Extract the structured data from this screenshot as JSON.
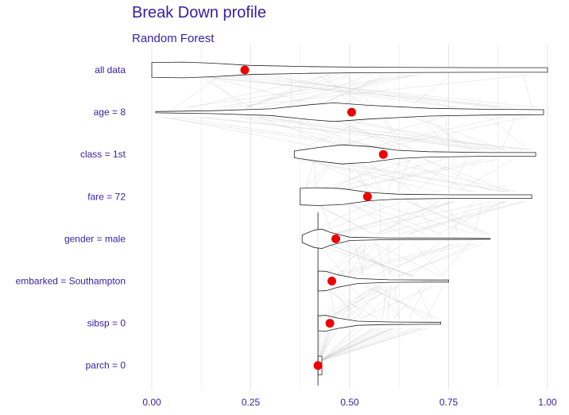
{
  "title": "Break Down profile",
  "subtitle": "Random Forest",
  "colors": {
    "text": "#371ea3",
    "point": "#ee0000",
    "grid": "#e6e6e6",
    "violin_stroke": "#222222",
    "trace": "#cccccc"
  },
  "chart_data": {
    "type": "violin",
    "title": "Break Down profile",
    "subtitle": "Random Forest",
    "xlim": [
      0,
      1
    ],
    "x_ticks": [
      "0.00",
      "0.25",
      "0.50",
      "0.75",
      "1.00"
    ],
    "x_tick_values": [
      0,
      0.25,
      0.5,
      0.75,
      1.0
    ],
    "grid": true,
    "categories": [
      "all data",
      "age = 8",
      "class = 1st",
      "fare = 72",
      "gender = male",
      "embarked = Southampton",
      "sibsp = 0",
      "parch = 0"
    ],
    "points": [
      0.235,
      0.505,
      0.585,
      0.545,
      0.465,
      0.455,
      0.45,
      0.42
    ],
    "violins": [
      {
        "min": 0.0,
        "max": 1.0,
        "profile": [
          [
            0.0,
            0.36
          ],
          [
            0.08,
            0.38
          ],
          [
            0.15,
            0.33
          ],
          [
            0.25,
            0.22
          ],
          [
            0.4,
            0.16
          ],
          [
            0.55,
            0.13
          ],
          [
            0.7,
            0.12
          ],
          [
            0.85,
            0.11
          ],
          [
            1.0,
            0.11
          ]
        ]
      },
      {
        "min": 0.01,
        "max": 0.99,
        "profile": [
          [
            0.01,
            0.03
          ],
          [
            0.15,
            0.07
          ],
          [
            0.3,
            0.16
          ],
          [
            0.4,
            0.36
          ],
          [
            0.46,
            0.45
          ],
          [
            0.55,
            0.33
          ],
          [
            0.7,
            0.19
          ],
          [
            0.85,
            0.14
          ],
          [
            0.99,
            0.12
          ]
        ]
      },
      {
        "min": 0.36,
        "max": 0.97,
        "profile": [
          [
            0.36,
            0.16
          ],
          [
            0.42,
            0.33
          ],
          [
            0.48,
            0.46
          ],
          [
            0.55,
            0.38
          ],
          [
            0.62,
            0.2
          ],
          [
            0.7,
            0.13
          ],
          [
            0.85,
            0.09
          ],
          [
            0.97,
            0.09
          ]
        ]
      },
      {
        "min": 0.375,
        "max": 0.96,
        "profile": [
          [
            0.375,
            0.4
          ],
          [
            0.42,
            0.43
          ],
          [
            0.48,
            0.39
          ],
          [
            0.55,
            0.2
          ],
          [
            0.62,
            0.12
          ],
          [
            0.75,
            0.09
          ],
          [
            0.88,
            0.09
          ],
          [
            0.96,
            0.09
          ]
        ]
      },
      {
        "min": 0.38,
        "max": 0.855,
        "profile": [
          [
            0.38,
            0.18
          ],
          [
            0.41,
            0.42
          ],
          [
            0.43,
            0.47
          ],
          [
            0.45,
            0.32
          ],
          [
            0.5,
            0.08
          ],
          [
            0.6,
            0.04
          ],
          [
            0.78,
            0.03
          ],
          [
            0.855,
            0.015
          ]
        ]
      },
      {
        "min": 0.42,
        "max": 0.75,
        "profile": [
          [
            0.42,
            0.48
          ],
          [
            0.44,
            0.47
          ],
          [
            0.47,
            0.3
          ],
          [
            0.52,
            0.12
          ],
          [
            0.6,
            0.06
          ],
          [
            0.7,
            0.05
          ],
          [
            0.75,
            0.05
          ]
        ]
      },
      {
        "min": 0.42,
        "max": 0.73,
        "profile": [
          [
            0.42,
            0.36
          ],
          [
            0.44,
            0.38
          ],
          [
            0.47,
            0.25
          ],
          [
            0.52,
            0.1
          ],
          [
            0.6,
            0.06
          ],
          [
            0.7,
            0.05
          ],
          [
            0.73,
            0.05
          ]
        ]
      },
      {
        "min": 0.42,
        "max": 0.43,
        "profile": [
          [
            0.42,
            0.45
          ],
          [
            0.43,
            0.45
          ]
        ]
      }
    ]
  }
}
